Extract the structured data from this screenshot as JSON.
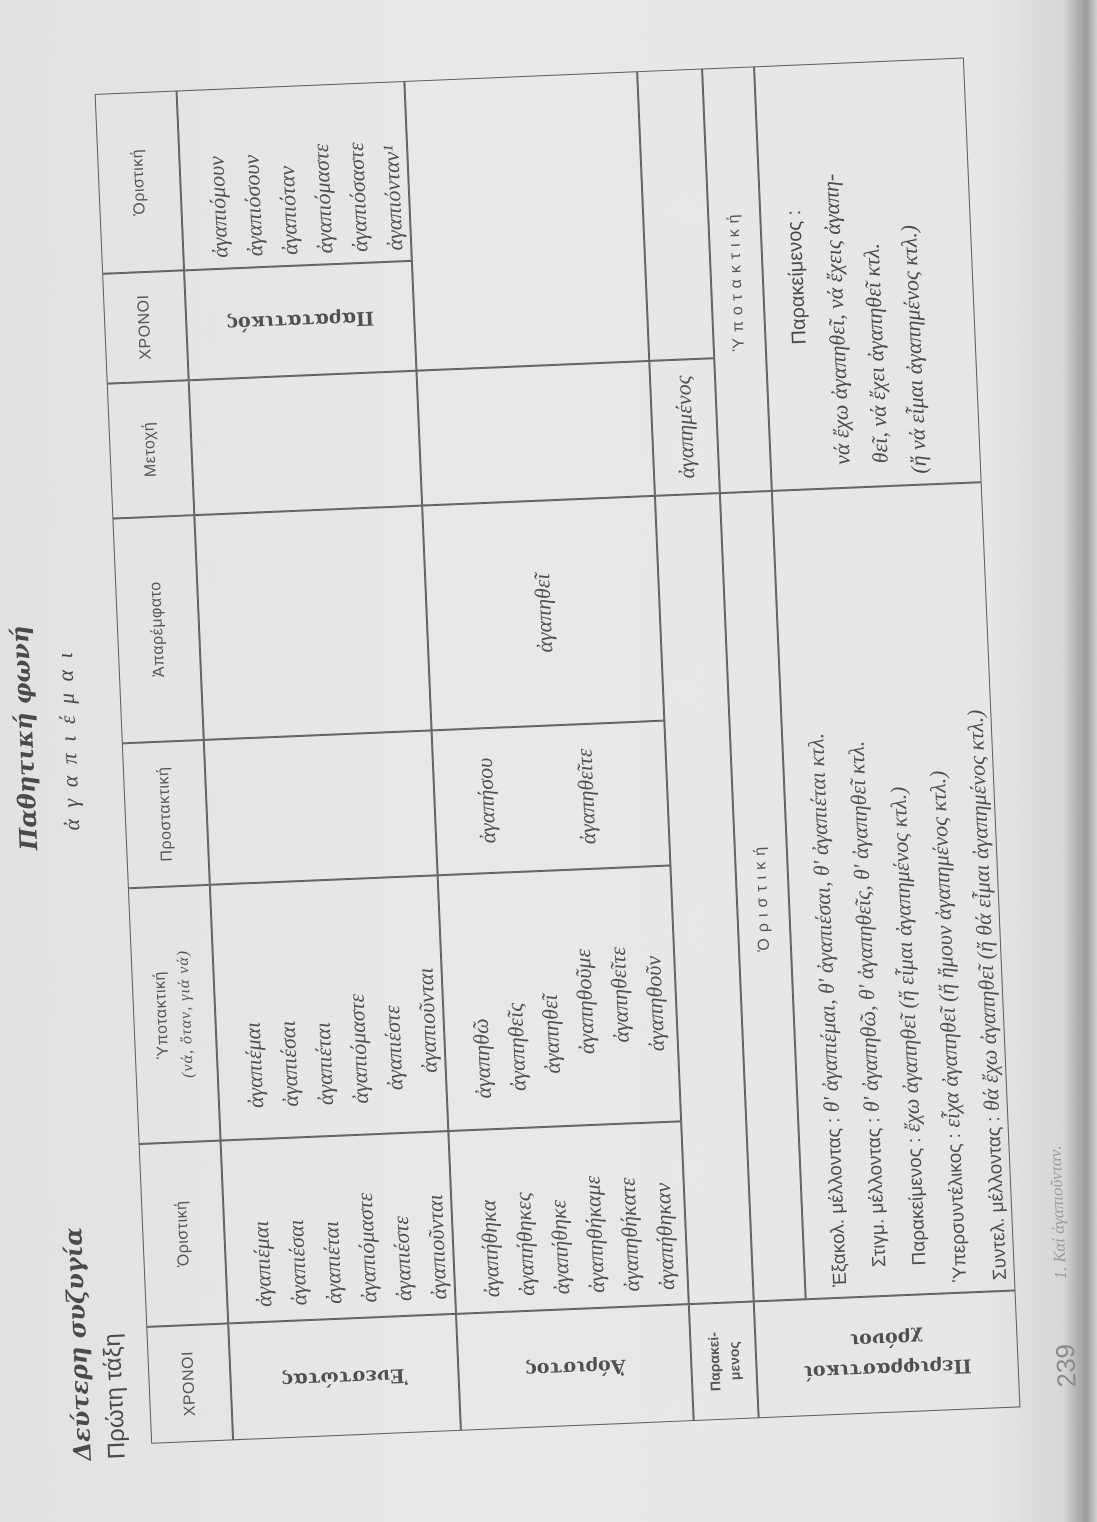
{
  "titles": {
    "conjugation": "Δεύτερη συζυγία",
    "class": "Πρώτη τάξη",
    "voice": "Παθητική φωνή",
    "verb": "ἀ γ α π ι έ μ α ι"
  },
  "headers": {
    "tenses": "ΧΡΟΝΟΙ",
    "indicative": "Ὁριστική",
    "subjunctive": "Ὑποτακτική",
    "subjunctive_note": "(νά, ὅταν, γιά νά)",
    "imperative": "Προστακτική",
    "infinitive": "Ἀπαρέμφατο",
    "participle": "Μετοχή",
    "tenses_2": "ΧΡΟΝΟΙ",
    "indicative_2": "Ὁριστική"
  },
  "present": {
    "label": "Ἐνεστώτας",
    "indicative": [
      "ἀγαπιέμαι",
      "ἀγαπιέσαι",
      "ἀγαπιέται",
      "ἀγαπιόμαστε",
      "ἀγαπιέστε",
      "ἀγαπιοῦνται"
    ],
    "subjunctive": [
      "ἀγαπιέμαι",
      "ἀγαπιέσαι",
      "ἀγαπιέται",
      "ἀγαπιόμαστε",
      "ἀγαπιέστε",
      "ἀγαπιοῦνται"
    ]
  },
  "imperfect": {
    "label": "Παρατατικός",
    "indicative": [
      "ἀγαπιόμουν",
      "ἀγαπιόσουν",
      "ἀγαπιόταν",
      "ἀγαπιόμαστε",
      "ἀγαπιόσαστε",
      "ἀγαπιόνταν¹"
    ]
  },
  "aorist": {
    "label": "Ἀόριστος",
    "indicative": [
      "ἀγαπήθηκα",
      "ἀγαπήθηκες",
      "ἀγαπήθηκε",
      "ἀγαπηθήκαμε",
      "ἀγαπηθήκατε",
      "ἀγαπήθηκαν"
    ],
    "subjunctive": [
      "ἀγαπηθῶ",
      "ἀγαπηθεῖς",
      "ἀγαπηθεῖ",
      "ἀγαπηθοῦμε",
      "ἀγαπηθεῖτε",
      "ἀγαπηθοῦν"
    ],
    "imperative": [
      "ἀγαπήσου",
      "ἀγαπηθεῖτε"
    ],
    "infinitive": "ἀγαπηθεῖ"
  },
  "perfect": {
    "label_line1": "Παρακεί-",
    "label_line2": "μενος",
    "participle": "ἀγαπημένος"
  },
  "periphrastic": {
    "label_line1": "Περιφραστικοί",
    "label_line2": "χρόνοι",
    "indicative_header": "Ὁριστική",
    "subjunctive_header": "Ὑποτακτική",
    "indicative": [
      {
        "label": "Ἐξακολ. μέλλοντας :",
        "forms": "θ' ἀγαπιέμαι, θ' ἀγαπιέσαι, θ' ἀγαπιέται κτλ."
      },
      {
        "label": "Στιγμ. μέλλοντας :",
        "forms": "θ' ἀγαπηθῶ, θ' ἀγαπηθεῖς, θ' ἀγαπηθεῖ κτλ."
      },
      {
        "label": "Παρακείμενος :",
        "forms": "ἔχω ἀγαπηθεῖ (ἤ εἶμαι ἀγαπημένος κτλ.)"
      },
      {
        "label": "Ὑπερσυντέλικος :",
        "forms": "εἶχα ἀγαπηθεῖ (ἤ ἤμουν ἀγαπημένος κτλ.)"
      },
      {
        "label": "Συντελ. μέλλοντας :",
        "forms": "θά ἔχω ἀγαπηθεῖ (ἤ θά εἶμαι ἀγαπημένος κτλ.)"
      }
    ],
    "subjunctive": {
      "title": "Παρακείμενος :",
      "lines": [
        "νά ἔχω ἀγαπηθεῖ, νά ἔχεις ἀγαπη-",
        "θεῖ, νά ἔχει ἀγαπηθεῖ κτλ.",
        "(ἤ νά εἶμαι ἀγαπημένος κτλ.)"
      ]
    }
  },
  "footnote": "1. Καί ἀγαπιοῦνταν.",
  "page_number": "239"
}
